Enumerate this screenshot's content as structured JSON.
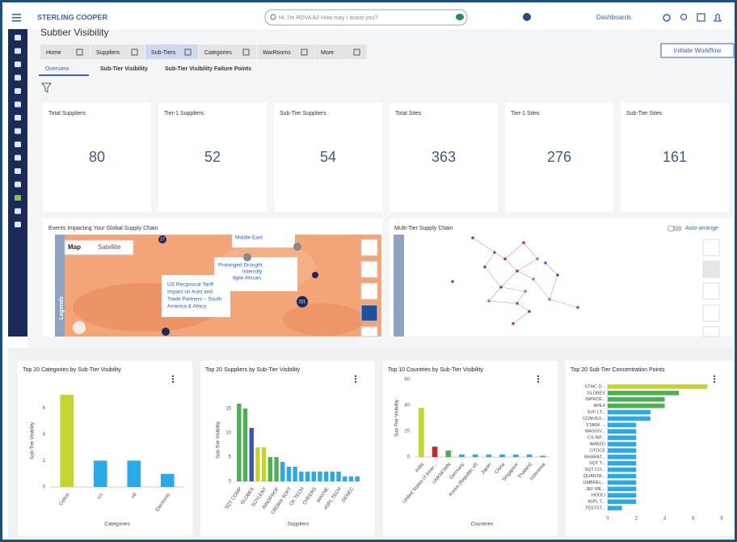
{
  "header": {
    "brand": "STERLING COOPER",
    "search_placeholder": "Hi, I'm RDVA AI! How may I assist you?",
    "dashboards": "Dashboards"
  },
  "page_title": "Subtier Visibility",
  "tabs": [
    "Home",
    "Suppliers",
    "Sub-Tiers",
    "Categories",
    "WarRooms",
    "More"
  ],
  "action_button": "Initiate Workflow",
  "subtabs": [
    "Overview",
    "Sub-Tier Visibility",
    "Sub-Tier Visibility Failure Points"
  ],
  "kpis": [
    {
      "label": "Total Suppliers",
      "value": 80
    },
    {
      "label": "Tier-1 Suppliers",
      "value": 52
    },
    {
      "label": "Sub-Tier Suppliers",
      "value": 54
    },
    {
      "label": "Total Sites",
      "value": 363
    },
    {
      "label": "Tier-1 Sites",
      "value": 276
    },
    {
      "label": "Sub-Tier Sites",
      "value": 161
    }
  ],
  "map_panel": {
    "title": "Events Impacting Your Global Supply Chain",
    "toggle": [
      "Map",
      "Satellite"
    ],
    "legend": "Legends",
    "markers": [
      27,
      221
    ],
    "popup_region": "Middle East",
    "popup_drought": [
      "Prolonged Drought",
      "Intensify",
      "ltiple African"
    ],
    "popup_tariff": [
      "US Reciprocal Tariff",
      "Impact on Auto and",
      "Trade Partners – South",
      "America & Africa"
    ]
  },
  "network_panel": {
    "title": "Multi-Tier Supply Chain",
    "auto_arrange": "Auto-arrange"
  },
  "chart_data": [
    {
      "type": "bar",
      "title": "Top 20 Categories by Sub-Tier Visibility",
      "x_label": "Categories",
      "y_label": "Sub-Tier Visibility",
      "categories": [
        "Cotton",
        "U1",
        "n8",
        "Electronic"
      ],
      "values": [
        7,
        2,
        2,
        1
      ],
      "colors": [
        "#c5d52e",
        "#2aa9e8",
        "#2aa9e8",
        "#2aa9e8"
      ],
      "ylim": [
        0,
        7
      ],
      "yticks": [
        0,
        2,
        4,
        6
      ],
      "grid": false
    },
    {
      "type": "bar",
      "title": "Top 20 Suppliers by Sub-Tier Visibility",
      "x_label": "Suppliers",
      "y_label": "Sub-Tier Visibility",
      "categories": [
        "SQT COMP",
        null,
        "GLOBEX",
        null,
        "SOYLENT",
        null,
        "INNOPROF",
        null,
        "CRDMA SOFT",
        null,
        "CK TECH",
        null,
        "CHEERS",
        null,
        "WAYNE",
        null,
        "4SPL TECH",
        null,
        "GENEC",
        null
      ],
      "values": [
        16,
        15,
        11,
        7,
        7,
        5,
        5,
        4,
        3,
        3,
        2,
        2,
        2,
        2,
        2,
        2,
        2,
        1,
        1,
        1
      ],
      "colors": [
        "#4caf50",
        "#4caf50",
        "#3f51b5",
        "#c5d52e",
        "#c5d52e",
        "#4caf50",
        "#4caf50",
        "#2aa9e8",
        "#2aa9e8",
        "#2aa9e8",
        "#2aa9e8",
        "#2aa9e8",
        "#2aa9e8",
        "#2aa9e8",
        "#2aa9e8",
        "#2aa9e8",
        "#2aa9e8",
        "#2aa9e8",
        "#2aa9e8",
        "#2aa9e8"
      ],
      "ylim": [
        0,
        17
      ],
      "yticks": [
        0,
        5,
        10,
        15
      ],
      "grid": false
    },
    {
      "type": "bar",
      "title": "Top 10 Countries by Sub-Tier Visibility",
      "x_label": "Countries",
      "y_label": "Sub-Tier Visibility",
      "categories": [
        "India",
        "United States of Amer...",
        "UNKNOWN",
        "Germany",
        "Korea (Republic of)",
        "Japan",
        "China",
        "Singapore",
        "Thailand",
        "Indonesia"
      ],
      "values": [
        38,
        8,
        5,
        2,
        2,
        2,
        2,
        2,
        2,
        1
      ],
      "colors": [
        "#c5d52e",
        "#c62828",
        "#4caf50",
        "#2aa9e8",
        "#2aa9e8",
        "#2aa9e8",
        "#2aa9e8",
        "#2aa9e8",
        "#2aa9e8",
        "#2aa9e8"
      ],
      "ylim": [
        0,
        60
      ],
      "yticks": [
        0,
        20,
        40,
        60
      ],
      "grid": false
    },
    {
      "type": "barh",
      "title": "Top 20 Sub-Tier Concentration Points",
      "categories": [
        "STMC D...",
        "GLOBEX",
        "INPROF...",
        "APEX",
        "SVF LT...",
        "CONVEX...",
        "STARK ...",
        "MASSIV...",
        "CS INF...",
        "AMKED",
        "OTOCE",
        "BHARAT...",
        "SQT T...",
        "SQT CO...",
        "QUANTA...",
        "UMBREL...",
        "JEF ME...",
        "HOOLI",
        "4SPL T...",
        "TESTST..."
      ],
      "values": [
        7,
        5,
        4,
        4,
        3,
        3,
        2,
        2,
        2,
        2,
        2,
        2,
        2,
        2,
        2,
        2,
        2,
        2,
        2,
        1
      ],
      "colors": [
        "#c5d52e",
        "#4caf50",
        "#4caf50",
        "#4caf50",
        "#2aa9e8",
        "#2aa9e8",
        "#2aa9e8",
        "#2aa9e8",
        "#2aa9e8",
        "#2aa9e8",
        "#2aa9e8",
        "#2aa9e8",
        "#2aa9e8",
        "#2aa9e8",
        "#2aa9e8",
        "#2aa9e8",
        "#2aa9e8",
        "#2aa9e8",
        "#2aa9e8",
        "#2aa9e8"
      ],
      "xlim": [
        0,
        8
      ],
      "xticks": [
        0,
        2,
        4,
        6,
        8
      ],
      "grid": false
    }
  ]
}
